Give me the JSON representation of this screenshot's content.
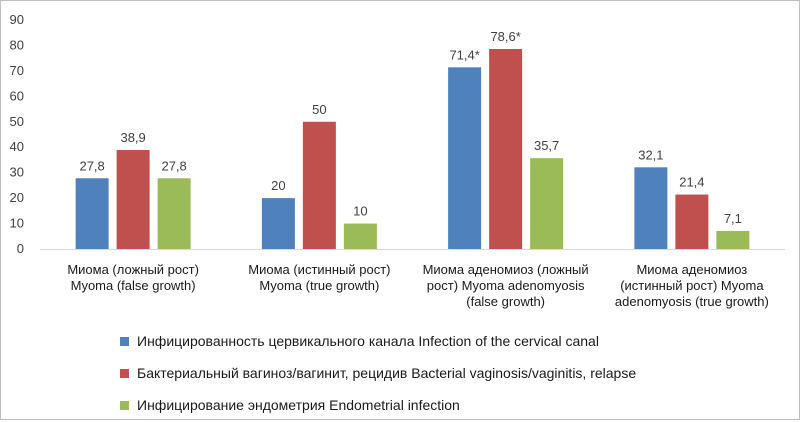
{
  "chart_data": {
    "type": "bar",
    "categories": [
      [
        "Миома (ложный рост)",
        "Myoma (false growth)"
      ],
      [
        "Миома (истинный рост)",
        "Myoma (true growth)"
      ],
      [
        "Миома аденомиоз (ложный",
        "рост) Myoma adenomyosis",
        "(false growth)"
      ],
      [
        "Миома аденомиоз",
        "(истинный рост) Myoma",
        "adenomyosis (true growth)"
      ]
    ],
    "series": [
      {
        "name": "Инфицированность цервикального канала Infection of the cervical canal",
        "color": "#4f81bd",
        "values": [
          27.8,
          20,
          71.4,
          32.1
        ],
        "labels": [
          "27,8",
          "20",
          "71,4*",
          "32,1"
        ]
      },
      {
        "name": "Бактериальный вагиноз/вагинит, рецидив Bacterial vaginosis/vaginitis, relapse",
        "color": "#c0504d",
        "values": [
          38.9,
          50,
          78.6,
          21.4
        ],
        "labels": [
          "38,9",
          "50",
          "78,6*",
          "21,4"
        ]
      },
      {
        "name": "Инфицирование эндометрия Endometrial infection",
        "color": "#9bbb59",
        "values": [
          27.8,
          10,
          35.7,
          7.1
        ],
        "labels": [
          "27,8",
          "10",
          "35,7",
          "7,1"
        ]
      }
    ],
    "yticks": [
      "0",
      "10",
      "20",
      "30",
      "40",
      "50",
      "60",
      "70",
      "80",
      "90"
    ],
    "ylim": [
      0,
      90
    ],
    "grid": false,
    "legend_position": "bottom"
  }
}
